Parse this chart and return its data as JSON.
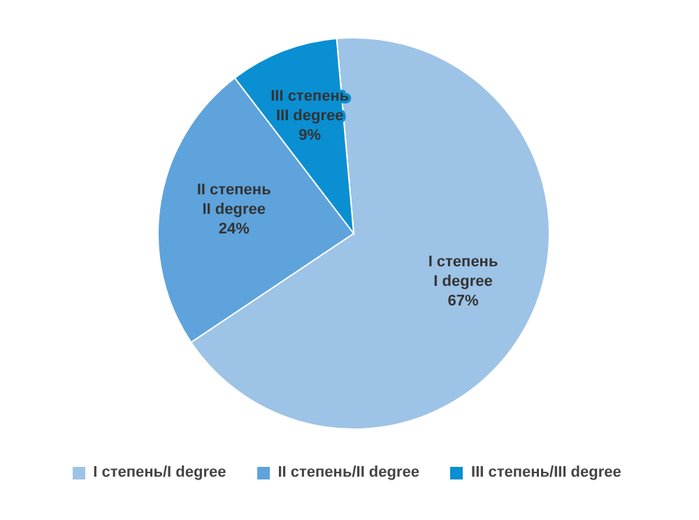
{
  "chart_data": {
    "type": "pie",
    "categories": [
      "I степень/I degree",
      "II степень/II degree",
      "III степень/III degree"
    ],
    "values": [
      67,
      24,
      9
    ],
    "colors": [
      "#9dc3e6",
      "#5ea3dc",
      "#0a8fd2"
    ],
    "value_labels": [
      "I степень\nI degree\n67%",
      "II степень\nII degree\n24%",
      "III степень\nIII degree\n9%"
    ],
    "legend": "bottom"
  }
}
